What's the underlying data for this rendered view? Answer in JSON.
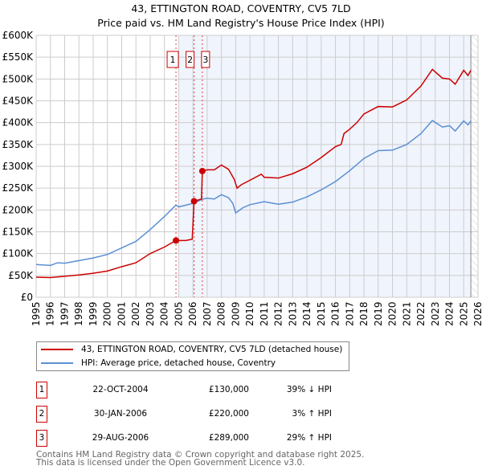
{
  "title": {
    "line1": "43, ETTINGTON ROAD, COVENTRY, CV5 7LD",
    "line2": "Price paid vs. HM Land Registry's House Price Index (HPI)"
  },
  "chart_data": {
    "type": "line",
    "xlim": [
      1995,
      2026
    ],
    "ylim": [
      0,
      600000
    ],
    "yticks": [
      {
        "v": 0,
        "label": "£0"
      },
      {
        "v": 50000,
        "label": "£50K"
      },
      {
        "v": 100000,
        "label": "£100K"
      },
      {
        "v": 150000,
        "label": "£150K"
      },
      {
        "v": 200000,
        "label": "£200K"
      },
      {
        "v": 250000,
        "label": "£250K"
      },
      {
        "v": 300000,
        "label": "£300K"
      },
      {
        "v": 350000,
        "label": "£350K"
      },
      {
        "v": 400000,
        "label": "£400K"
      },
      {
        "v": 450000,
        "label": "£450K"
      },
      {
        "v": 500000,
        "label": "£500K"
      },
      {
        "v": 550000,
        "label": "£550K"
      },
      {
        "v": 600000,
        "label": "£600K"
      }
    ],
    "xticks": [
      "1995",
      "1996",
      "1997",
      "1998",
      "1999",
      "2000",
      "2001",
      "2002",
      "2003",
      "2004",
      "2005",
      "2006",
      "2007",
      "2008",
      "2009",
      "2010",
      "2011",
      "2012",
      "2013",
      "2014",
      "2015",
      "2016",
      "2017",
      "2018",
      "2019",
      "2020",
      "2021",
      "2022",
      "2023",
      "2024",
      "2025",
      "2026"
    ],
    "shaded_range": [
      2005,
      2025.5
    ],
    "series": [
      {
        "name": "43, ETTINGTON ROAD, COVENTRY, CV5 7LD (detached house)",
        "color": "#cc0000",
        "points": [
          [
            1995,
            46000
          ],
          [
            1996,
            45000
          ],
          [
            1997,
            48000
          ],
          [
            1998,
            51000
          ],
          [
            1999,
            55000
          ],
          [
            2000,
            60000
          ],
          [
            2001,
            70000
          ],
          [
            2002,
            79000
          ],
          [
            2003,
            100000
          ],
          [
            2004,
            115000
          ],
          [
            2004.81,
            130000
          ],
          [
            2005.5,
            130000
          ],
          [
            2005.95,
            133000
          ],
          [
            2006.08,
            220000
          ],
          [
            2006.6,
            225000
          ],
          [
            2006.66,
            289000
          ],
          [
            2007,
            292000
          ],
          [
            2007.5,
            292000
          ],
          [
            2008,
            303000
          ],
          [
            2008.5,
            293000
          ],
          [
            2008.9,
            270000
          ],
          [
            2009.1,
            250000
          ],
          [
            2009.4,
            258000
          ],
          [
            2010,
            268000
          ],
          [
            2010.8,
            282000
          ],
          [
            2011,
            275000
          ],
          [
            2012,
            273000
          ],
          [
            2013,
            283000
          ],
          [
            2014,
            298000
          ],
          [
            2015,
            320000
          ],
          [
            2016,
            345000
          ],
          [
            2016.4,
            350000
          ],
          [
            2016.6,
            375000
          ],
          [
            2017,
            385000
          ],
          [
            2017.5,
            400000
          ],
          [
            2018,
            420000
          ],
          [
            2019,
            437000
          ],
          [
            2020,
            436000
          ],
          [
            2021,
            452000
          ],
          [
            2022,
            484000
          ],
          [
            2022.8,
            522000
          ],
          [
            2023.5,
            502000
          ],
          [
            2024,
            500000
          ],
          [
            2024.4,
            488000
          ],
          [
            2025,
            520000
          ],
          [
            2025.3,
            508000
          ],
          [
            2025.5,
            520000
          ]
        ]
      },
      {
        "name": "HPI: Average price, detached house, Coventry",
        "color": "#5b8fd4",
        "points": [
          [
            1995,
            75000
          ],
          [
            1996,
            73000
          ],
          [
            1996.5,
            79000
          ],
          [
            1997,
            78000
          ],
          [
            1998,
            84000
          ],
          [
            1999,
            90000
          ],
          [
            2000,
            98000
          ],
          [
            2001,
            113000
          ],
          [
            2002,
            128000
          ],
          [
            2003,
            155000
          ],
          [
            2004,
            185000
          ],
          [
            2004.8,
            211000
          ],
          [
            2005,
            207000
          ],
          [
            2006,
            215000
          ],
          [
            2006.7,
            225000
          ],
          [
            2007,
            227000
          ],
          [
            2007.5,
            225000
          ],
          [
            2008,
            235000
          ],
          [
            2008.5,
            228000
          ],
          [
            2008.8,
            215000
          ],
          [
            2009.0,
            193000
          ],
          [
            2009.5,
            205000
          ],
          [
            2010,
            212000
          ],
          [
            2011,
            219000
          ],
          [
            2012,
            213000
          ],
          [
            2013,
            218000
          ],
          [
            2014,
            230000
          ],
          [
            2015,
            246000
          ],
          [
            2016,
            265000
          ],
          [
            2017,
            290000
          ],
          [
            2018,
            318000
          ],
          [
            2019,
            336000
          ],
          [
            2020,
            337000
          ],
          [
            2021,
            350000
          ],
          [
            2022,
            375000
          ],
          [
            2022.8,
            405000
          ],
          [
            2023.5,
            390000
          ],
          [
            2024,
            393000
          ],
          [
            2024.4,
            381000
          ],
          [
            2025,
            404000
          ],
          [
            2025.3,
            395000
          ],
          [
            2025.5,
            404000
          ]
        ]
      }
    ],
    "annotations": [
      {
        "label": "1",
        "x": 2004.81,
        "y": 130000
      },
      {
        "label": "2",
        "x": 2006.08,
        "y": 220000
      },
      {
        "label": "3",
        "x": 2006.66,
        "y": 289000
      }
    ]
  },
  "legend": [
    "43, ETTINGTON ROAD, COVENTRY, CV5 7LD (detached house)",
    "HPI: Average price, detached house, Coventry"
  ],
  "transactions": [
    {
      "num": "1",
      "date": "22-OCT-2004",
      "price": "£130,000",
      "hpi": "39% ↓ HPI"
    },
    {
      "num": "2",
      "date": "30-JAN-2006",
      "price": "£220,000",
      "hpi": "3% ↑ HPI"
    },
    {
      "num": "3",
      "date": "29-AUG-2006",
      "price": "£289,000",
      "hpi": "29% ↑ HPI"
    }
  ],
  "footer": {
    "line1": "Contains HM Land Registry data © Crown copyright and database right 2025.",
    "line2": "This data is licensed under the Open Government Licence v3.0."
  }
}
